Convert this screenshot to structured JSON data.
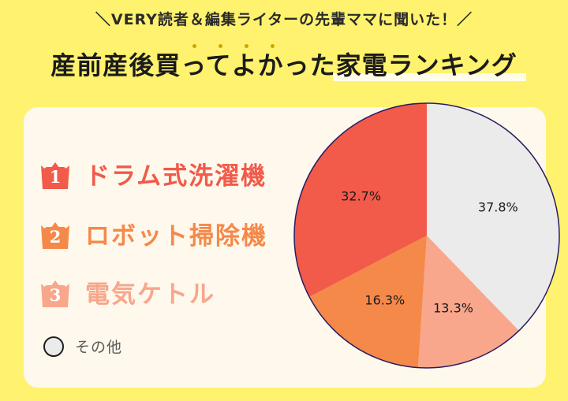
{
  "header": {
    "subtitle": "＼VERY読者＆編集ライターの先輩ママに聞いた！／",
    "title": "産前産後買ってよかった家電ランキング"
  },
  "ranking": [
    {
      "rank": "1",
      "label": "ドラム式洗濯機",
      "color": "#F25A4A"
    },
    {
      "rank": "2",
      "label": "ロボット掃除機",
      "color": "#F5894A"
    },
    {
      "rank": "3",
      "label": "電気ケトル",
      "color": "#F8A68C"
    }
  ],
  "other_label": "その他",
  "colors": {
    "background": "#FFF26E",
    "card": "#FEF9EC",
    "other": "#EBEBEB",
    "pie_outline": "#2a1b5e"
  },
  "chart_data": {
    "type": "pie",
    "title": "産前産後買ってよかった家電ランキング",
    "slices": [
      {
        "label": "その他",
        "value": 37.8,
        "display": "37.8%",
        "color": "#EBEBEB"
      },
      {
        "label": "電気ケトル",
        "value": 13.3,
        "display": "13.3%",
        "color": "#F8A68C"
      },
      {
        "label": "ロボット掃除機",
        "value": 16.3,
        "display": "16.3%",
        "color": "#F5894A"
      },
      {
        "label": "ドラム式洗濯機",
        "value": 32.7,
        "display": "32.7%",
        "color": "#F25A4A"
      }
    ],
    "start": "12 o'clock",
    "direction": "clockwise",
    "legend": "left"
  }
}
